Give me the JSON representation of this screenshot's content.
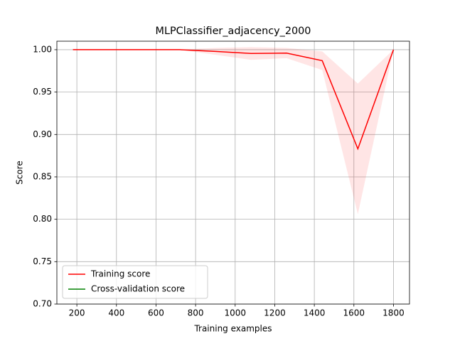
{
  "chart_data": {
    "type": "line",
    "title": "MLPClassifier_adjacency_2000",
    "xlabel": "Training examples",
    "ylabel": "Score",
    "x": [
      180,
      360,
      540,
      720,
      900,
      1080,
      1260,
      1440,
      1620,
      1800
    ],
    "series": [
      {
        "name": "Training score",
        "color": "#ff0000",
        "values": [
          1.0,
          1.0,
          1.0,
          1.0,
          0.998,
          0.9955,
          0.996,
          0.987,
          0.883,
          1.0
        ],
        "lower": [
          1.0,
          1.0,
          1.0,
          1.0,
          0.994,
          0.988,
          0.99,
          0.976,
          0.806,
          1.0
        ],
        "upper": [
          1.0,
          1.0,
          1.0,
          1.0,
          1.002,
          1.003,
          1.002,
          0.998,
          0.96,
          1.0
        ]
      },
      {
        "name": "Cross-validation score",
        "color": "#008000",
        "values": [
          null,
          null,
          null,
          null,
          null,
          null,
          null,
          null,
          null,
          null
        ]
      }
    ],
    "xlim": [
      99,
      1881
    ],
    "ylim": [
      0.7,
      1.01
    ],
    "xticks": [
      200,
      400,
      600,
      800,
      1000,
      1200,
      1400,
      1600,
      1800
    ],
    "yticks": [
      {
        "value": 0.7,
        "label": "0.70"
      },
      {
        "value": 0.75,
        "label": "0.75"
      },
      {
        "value": 0.8,
        "label": "0.80"
      },
      {
        "value": 0.85,
        "label": "0.85"
      },
      {
        "value": 0.9,
        "label": "0.90"
      },
      {
        "value": 0.95,
        "label": "0.95"
      },
      {
        "value": 1.0,
        "label": "1.00"
      }
    ],
    "grid": true,
    "legend": "lower left"
  }
}
